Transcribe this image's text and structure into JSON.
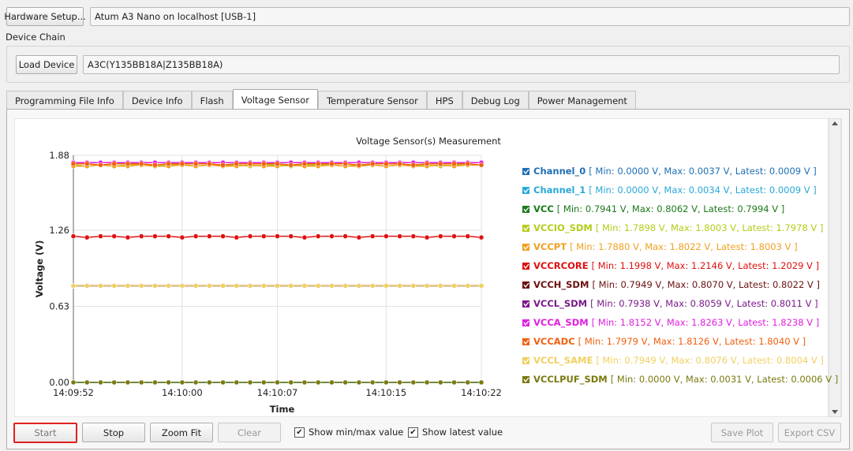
{
  "hardware_setup_button": "Hardware Setup...",
  "hardware_field": "Atum A3 Nano on localhost [USB-1]",
  "device_chain_label": "Device Chain",
  "load_device_button": "Load Device",
  "device_field": "A3C(Y135BB18A|Z135BB18A)",
  "tabs": [
    "Programming File Info",
    "Device Info",
    "Flash",
    "Voltage Sensor",
    "Temperature Sensor",
    "HPS",
    "Debug Log",
    "Power Management"
  ],
  "active_tab": 3,
  "chart_data": {
    "type": "line",
    "title": "Voltage Sensor(s) Measurement",
    "x_label": "Time",
    "y_label": "Voltage (V)",
    "x": [
      "14:09:52",
      "14:09:53",
      "14:09:54",
      "14:09:55",
      "14:09:56",
      "14:09:57",
      "14:09:58",
      "14:09:59",
      "14:10:00",
      "14:10:01",
      "14:10:02",
      "14:10:03",
      "14:10:04",
      "14:10:05",
      "14:10:06",
      "14:10:07",
      "14:10:08",
      "14:10:09",
      "14:10:10",
      "14:10:11",
      "14:10:12",
      "14:10:13",
      "14:10:14",
      "14:10:15",
      "14:10:16",
      "14:10:17",
      "14:10:18",
      "14:10:19",
      "14:10:20",
      "14:10:21",
      "14:10:22"
    ],
    "xticks": [
      "14:09:52",
      "14:10:00",
      "14:10:07",
      "14:10:15",
      "14:10:22"
    ],
    "ylim": [
      0,
      1.88
    ],
    "yticks": [
      {
        "value": 0,
        "label": "0.00"
      },
      0.63,
      1.26,
      1.88
    ],
    "grid": true,
    "series": [
      {
        "name": "Channel_0",
        "stats": "[ Min: 0.0000 V, Max: 0.0037 V, Latest: 0.0009 V ]",
        "color": "#1f6fb5",
        "checked": true,
        "values": [
          0,
          0,
          0,
          0,
          0,
          0,
          0,
          0,
          0,
          0,
          0,
          0,
          0,
          0,
          0,
          0,
          0,
          0,
          0,
          0,
          0,
          0,
          0,
          0,
          0,
          0,
          0,
          0,
          0,
          0,
          0
        ]
      },
      {
        "name": "Channel_1",
        "stats": "[ Min: 0.0000 V, Max: 0.0034 V, Latest: 0.0009 V ]",
        "color": "#29a8d8",
        "checked": true,
        "values": [
          0,
          0,
          0,
          0,
          0,
          0,
          0,
          0,
          0,
          0,
          0,
          0,
          0,
          0,
          0,
          0,
          0,
          0,
          0,
          0,
          0,
          0,
          0,
          0,
          0,
          0,
          0,
          0,
          0,
          0,
          0
        ]
      },
      {
        "name": "VCC",
        "stats": "[ Min: 0.7941 V, Max: 0.8062 V, Latest: 0.7994 V ]",
        "color": "#1a7a1a",
        "checked": true,
        "values": [
          0.8,
          0.8,
          0.8,
          0.8,
          0.8,
          0.8,
          0.8,
          0.8,
          0.8,
          0.8,
          0.8,
          0.8,
          0.8,
          0.8,
          0.8,
          0.8,
          0.8,
          0.8,
          0.8,
          0.8,
          0.8,
          0.8,
          0.8,
          0.8,
          0.8,
          0.8,
          0.8,
          0.8,
          0.8,
          0.8,
          0.8
        ]
      },
      {
        "name": "VCCIO_SDM",
        "stats": "[ Min: 1.7898 V, Max: 1.8003 V, Latest: 1.7978 V ]",
        "color": "#b5cc1a",
        "checked": true,
        "values": [
          1.8,
          1.79,
          1.8,
          1.79,
          1.8,
          1.8,
          1.79,
          1.8,
          1.8,
          1.79,
          1.8,
          1.8,
          1.8,
          1.79,
          1.8,
          1.8,
          1.79,
          1.8,
          1.8,
          1.8,
          1.79,
          1.8,
          1.8,
          1.79,
          1.8,
          1.8,
          1.8,
          1.79,
          1.8,
          1.8,
          1.8
        ]
      },
      {
        "name": "VCCPT",
        "stats": "[ Min: 1.7880 V, Max: 1.8022 V, Latest: 1.8003 V ]",
        "color": "#f0a020",
        "checked": true,
        "values": [
          1.79,
          1.79,
          1.8,
          1.79,
          1.79,
          1.8,
          1.79,
          1.79,
          1.8,
          1.79,
          1.8,
          1.79,
          1.79,
          1.8,
          1.79,
          1.79,
          1.8,
          1.79,
          1.79,
          1.8,
          1.79,
          1.79,
          1.8,
          1.79,
          1.8,
          1.79,
          1.79,
          1.8,
          1.79,
          1.8,
          1.8
        ]
      },
      {
        "name": "VCCRCORE",
        "stats": "[ Min: 1.1998 V, Max: 1.2146 V, Latest: 1.2029 V ]",
        "color": "#e01010",
        "checked": true,
        "values": [
          1.21,
          1.2,
          1.21,
          1.21,
          1.2,
          1.21,
          1.21,
          1.21,
          1.2,
          1.21,
          1.21,
          1.21,
          1.2,
          1.21,
          1.21,
          1.21,
          1.21,
          1.2,
          1.21,
          1.21,
          1.21,
          1.2,
          1.21,
          1.21,
          1.21,
          1.21,
          1.2,
          1.21,
          1.21,
          1.21,
          1.2
        ]
      },
      {
        "name": "VCCH_SDM",
        "stats": "[ Min: 0.7949 V, Max: 0.8070 V, Latest: 0.8022 V ]",
        "color": "#6a1010",
        "checked": true,
        "values": [
          0.8,
          0.8,
          0.8,
          0.8,
          0.8,
          0.8,
          0.8,
          0.8,
          0.8,
          0.8,
          0.8,
          0.8,
          0.8,
          0.8,
          0.8,
          0.8,
          0.8,
          0.8,
          0.8,
          0.8,
          0.8,
          0.8,
          0.8,
          0.8,
          0.8,
          0.8,
          0.8,
          0.8,
          0.8,
          0.8,
          0.8
        ]
      },
      {
        "name": "VCCL_SDM",
        "stats": "[ Min: 0.7938 V, Max: 0.8059 V, Latest: 0.8011 V ]",
        "color": "#7a1a8a",
        "checked": true,
        "values": [
          0.8,
          0.8,
          0.8,
          0.8,
          0.8,
          0.8,
          0.8,
          0.8,
          0.8,
          0.8,
          0.8,
          0.8,
          0.8,
          0.8,
          0.8,
          0.8,
          0.8,
          0.8,
          0.8,
          0.8,
          0.8,
          0.8,
          0.8,
          0.8,
          0.8,
          0.8,
          0.8,
          0.8,
          0.8,
          0.8,
          0.8
        ]
      },
      {
        "name": "VCCA_SDM",
        "stats": "[ Min: 1.8152 V, Max: 1.8263 V, Latest: 1.8238 V ]",
        "color": "#e020e0",
        "checked": true,
        "values": [
          1.82,
          1.82,
          1.82,
          1.82,
          1.82,
          1.82,
          1.82,
          1.82,
          1.82,
          1.82,
          1.82,
          1.82,
          1.82,
          1.82,
          1.82,
          1.82,
          1.82,
          1.82,
          1.82,
          1.82,
          1.82,
          1.82,
          1.82,
          1.82,
          1.82,
          1.82,
          1.82,
          1.82,
          1.82,
          1.82,
          1.82
        ]
      },
      {
        "name": "VCCADC",
        "stats": "[ Min: 1.7979 V, Max: 1.8126 V, Latest: 1.8040 V ]",
        "color": "#f06010",
        "checked": true,
        "values": [
          1.81,
          1.81,
          1.8,
          1.81,
          1.81,
          1.81,
          1.8,
          1.81,
          1.81,
          1.81,
          1.81,
          1.8,
          1.81,
          1.81,
          1.81,
          1.81,
          1.8,
          1.81,
          1.81,
          1.81,
          1.81,
          1.8,
          1.81,
          1.81,
          1.81,
          1.8,
          1.81,
          1.81,
          1.81,
          1.81,
          1.8
        ]
      },
      {
        "name": "VCCL_SAME",
        "stats": "[ Min: 0.7949 V, Max: 0.8076 V, Latest: 0.8004 V ]",
        "color": "#f0d060",
        "checked": true,
        "values": [
          0.8,
          0.8,
          0.8,
          0.8,
          0.8,
          0.8,
          0.8,
          0.8,
          0.8,
          0.8,
          0.8,
          0.8,
          0.8,
          0.8,
          0.8,
          0.8,
          0.8,
          0.8,
          0.8,
          0.8,
          0.8,
          0.8,
          0.8,
          0.8,
          0.8,
          0.8,
          0.8,
          0.8,
          0.8,
          0.8,
          0.8
        ]
      },
      {
        "name": "VCCLPUF_SDM",
        "stats": "[ Min: 0.0000 V, Max: 0.0031 V, Latest: 0.0006 V ]",
        "color": "#7a7a10",
        "checked": true,
        "values": [
          0,
          0,
          0,
          0,
          0,
          0,
          0,
          0,
          0,
          0,
          0,
          0,
          0,
          0,
          0,
          0,
          0,
          0,
          0,
          0,
          0,
          0,
          0,
          0,
          0,
          0,
          0,
          0,
          0,
          0,
          0
        ]
      }
    ]
  },
  "buttons": {
    "start": "Start",
    "stop": "Stop",
    "zoom_fit": "Zoom Fit",
    "clear": "Clear",
    "save_plot": "Save Plot",
    "export_csv": "Export CSV"
  },
  "checkboxes": [
    {
      "label": "Show min/max value",
      "checked": true
    },
    {
      "label": "Show latest value",
      "checked": true
    }
  ]
}
